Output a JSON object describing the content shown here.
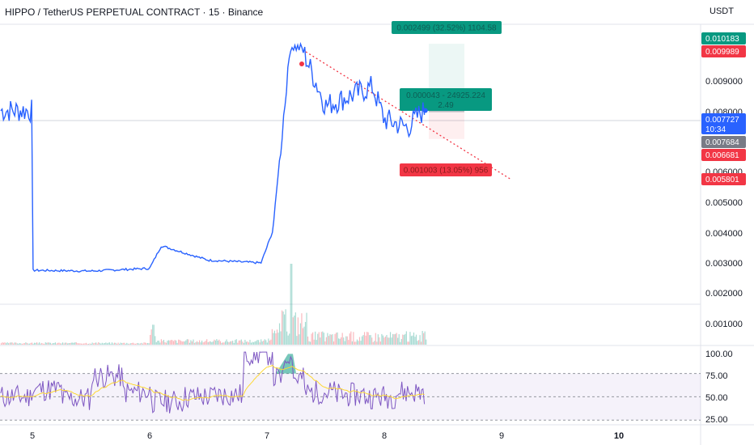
{
  "header": {
    "title": "HIPPO / TetherUS PERPETUAL CONTRACT · 15 · Binance",
    "currency": "USDT"
  },
  "colors": {
    "price_line": "#2962ff",
    "up": "#089981",
    "down": "#f23645",
    "rsi_line": "#7e57c2",
    "rsi_ma": "#fdd835"
  },
  "price_axis": {
    "ticks": [
      "0.009000",
      "0.008000",
      "0.006000",
      "0.005000",
      "0.004000",
      "0.003000",
      "0.002000",
      "0.001000"
    ]
  },
  "price_badges": [
    {
      "name": "target-price-badge",
      "value": "0.010183",
      "kind": "up"
    },
    {
      "name": "entry-high-badge",
      "value": "0.009989",
      "kind": "down"
    },
    {
      "name": "current-price-badge",
      "value": "0.007727",
      "kind": "current",
      "timer": "10:34"
    },
    {
      "name": "entry-price-badge",
      "value": "0.007684",
      "kind": "neutral"
    },
    {
      "name": "stop-price-badge",
      "value": "0.006681",
      "kind": "down"
    },
    {
      "name": "low-price-badge",
      "value": "0.005801",
      "kind": "down"
    }
  ],
  "position_tool": {
    "target_label": "0.002499 (32.52%) 1104.58",
    "entry_label_line1": "0.000043 - 24925.224",
    "entry_label_line2": "2.49",
    "stop_label": "0.001003 (13.05%) 956"
  },
  "rsi_axis": {
    "ticks": [
      "100.00",
      "75.00",
      "50.00",
      "25.00"
    ]
  },
  "time_axis": {
    "labels": [
      "5",
      "6",
      "7",
      "8",
      "9",
      "10"
    ]
  },
  "chart_data": {
    "type": "line",
    "symbol": "HIPPO / TetherUS PERPETUAL CONTRACT",
    "interval": "15",
    "x": [
      "5",
      "5.5",
      "6",
      "6.1",
      "6.5",
      "6.95",
      "7.05",
      "7.15",
      "7.2",
      "7.3",
      "7.5",
      "7.9",
      "8.0",
      "8.2",
      "8.3",
      "8.35"
    ],
    "values": [
      0.00185,
      0.00182,
      0.00192,
      0.00275,
      0.00222,
      0.00212,
      0.0033,
      0.0079,
      0.0101,
      0.01,
      0.0079,
      0.0086,
      0.0074,
      0.0071,
      0.0076,
      0.007727
    ],
    "ylim": [
      0.0006,
      0.0109
    ],
    "current_price": 0.007727,
    "rsi": {
      "values": [
        50,
        58,
        48,
        72,
        55,
        45,
        50,
        52,
        96,
        70,
        55,
        52,
        50,
        55,
        62
      ],
      "ylim": [
        20,
        105
      ]
    }
  }
}
